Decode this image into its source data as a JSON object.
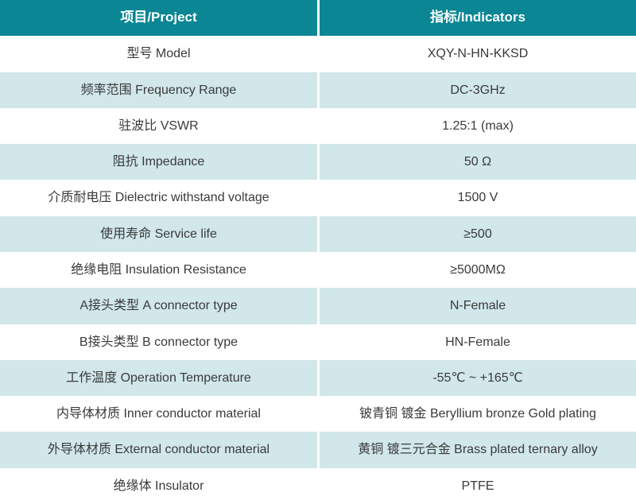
{
  "table": {
    "header": {
      "project_label": "项目/Project",
      "indicators_label": "指标/Indicators"
    },
    "rows": [
      {
        "project": "型号 Model",
        "indicator": "XQY-N-HN-KKSD"
      },
      {
        "project": "频率范围 Frequency Range",
        "indicator": "DC-3GHz"
      },
      {
        "project": "驻波比 VSWR",
        "indicator": "1.25:1 (max)"
      },
      {
        "project": "阻抗 Impedance",
        "indicator": "50 Ω"
      },
      {
        "project": "介质耐电压 Dielectric withstand voltage",
        "indicator": "1500 V"
      },
      {
        "project": "使用寿命 Service life",
        "indicator": "≥500"
      },
      {
        "project": "绝缘电阻 Insulation Resistance",
        "indicator": "≥5000MΩ"
      },
      {
        "project": "A接头类型 A connector type",
        "indicator": "N-Female"
      },
      {
        "project": "B接头类型 B connector type",
        "indicator": "HN-Female"
      },
      {
        "project": "工作温度 Operation Temperature",
        "indicator": "-55℃ ~ +165℃"
      },
      {
        "project": "内导体材质 Inner conductor material",
        "indicator": "铍青铜 镀金 Beryllium bronze Gold plating"
      },
      {
        "project": "外导体材质 External conductor material",
        "indicator": "黄铜 镀三元合金 Brass plated ternary alloy"
      },
      {
        "project": "绝缘体 Insulator",
        "indicator": "PTFE"
      }
    ],
    "colors": {
      "header_bg": "#0a8694",
      "header_text": "#ffffff",
      "row_bg": "#ffffff",
      "alt_row_bg": "#d1e7ea",
      "body_text": "#3a3a3a",
      "divider": "#ffffff"
    }
  }
}
